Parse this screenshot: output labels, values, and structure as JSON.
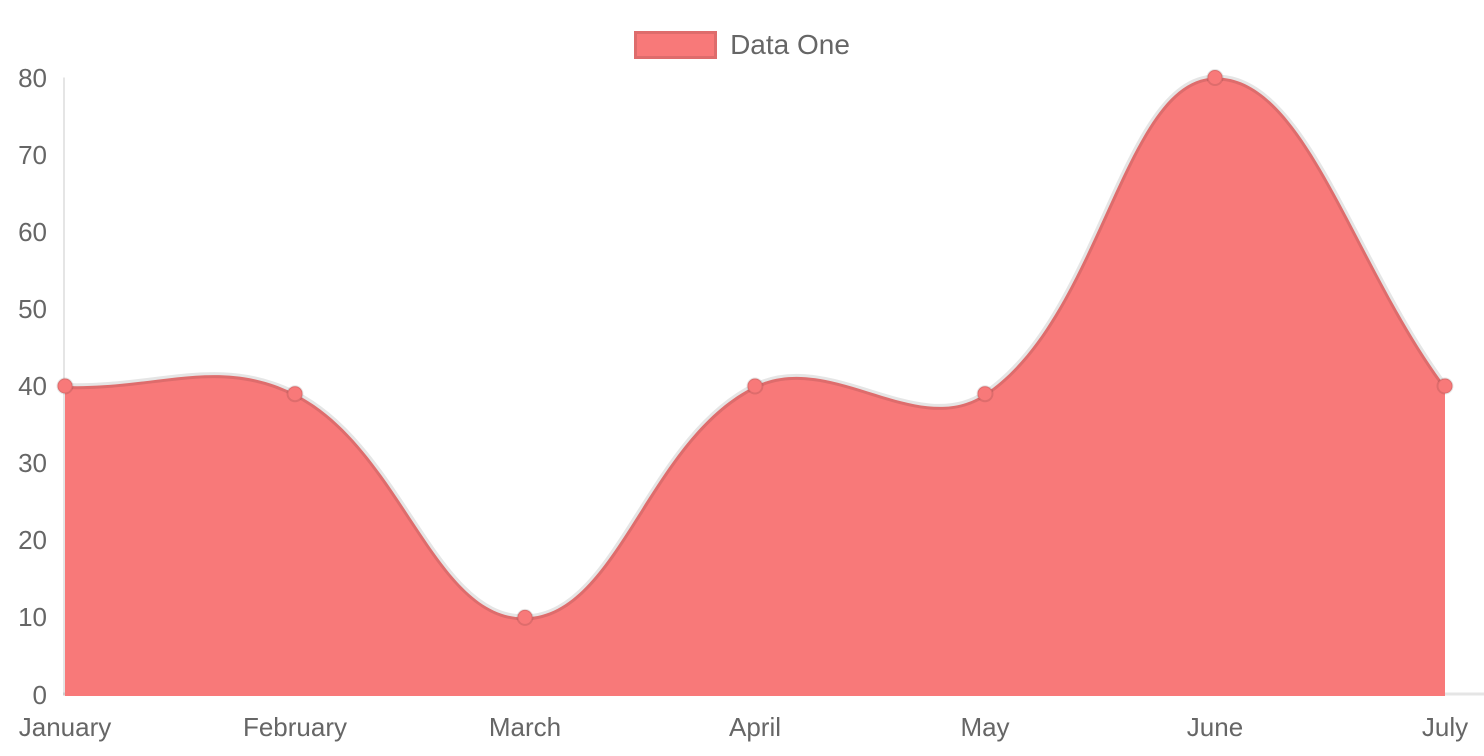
{
  "chart_data": {
    "type": "area",
    "title": "",
    "categories": [
      "January",
      "February",
      "March",
      "April",
      "May",
      "June",
      "July"
    ],
    "series": [
      {
        "name": "Data One",
        "values": [
          40,
          39,
          10,
          40,
          39,
          80,
          40
        ]
      }
    ],
    "xlabel": "",
    "ylabel": "",
    "ylim": [
      0,
      80
    ],
    "yticks": [
      0,
      10,
      20,
      30,
      40,
      50,
      60,
      70,
      80
    ],
    "grid": false,
    "legend_position": "top",
    "line_tension": 0.4,
    "colors": {
      "fill": "#f87979",
      "line": "rgba(0,0,0,0.1)",
      "point_fill": "#f87979",
      "point_border": "rgba(0,0,0,0.1)",
      "axis_line": "rgba(0,0,0,0.1)",
      "tick_text": "#666666",
      "legend_text": "#666666"
    }
  },
  "legend": {
    "items": [
      {
        "label": "Data One",
        "swatch_color": "#f87979"
      }
    ]
  }
}
